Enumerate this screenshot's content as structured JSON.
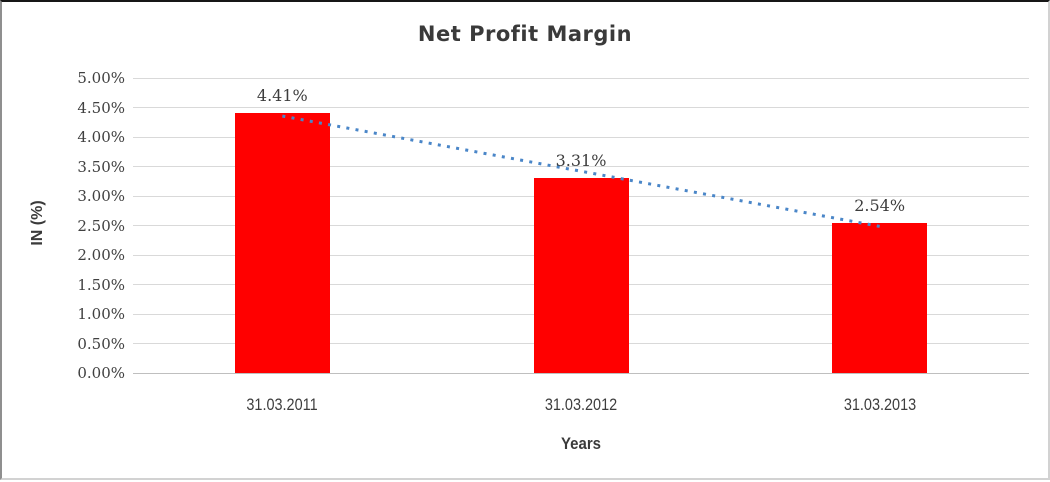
{
  "chart_data": {
    "type": "bar",
    "title": "Net Profit Margin",
    "xlabel": "Years",
    "ylabel": "IN (%)",
    "categories": [
      "31.03.2011",
      "31.03.2012",
      "31.03.2013"
    ],
    "values": [
      4.41,
      3.31,
      2.54
    ],
    "data_labels": [
      "4.41%",
      "3.31%",
      "2.54%"
    ],
    "ylim": [
      0,
      5
    ],
    "ytick_step": 0.5,
    "ytick_suffix": "%",
    "grid": "horizontal",
    "legend_position": "none",
    "trendline": {
      "type": "linear",
      "style": "dotted",
      "color": "#4A86C8"
    },
    "colors": {
      "bar": "#FF0000",
      "gridline": "#D9D9D9",
      "axis_line": "#BFBFBF",
      "text": "#404040",
      "title": "#3A3A3A"
    }
  }
}
